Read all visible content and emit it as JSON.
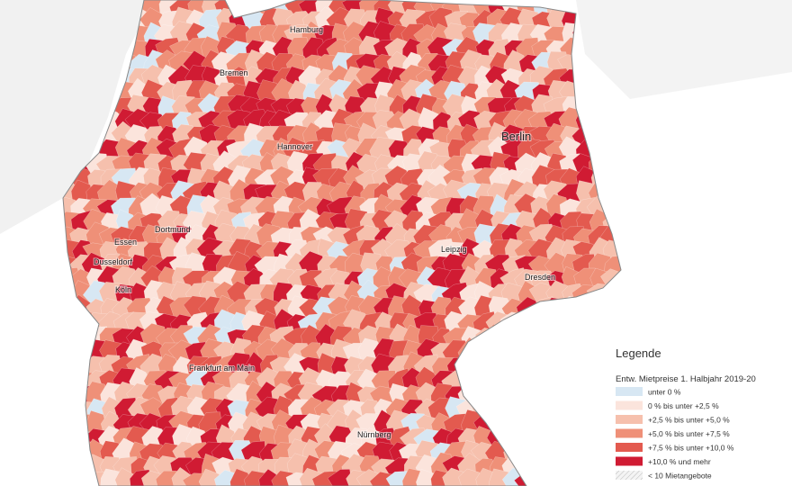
{
  "map": {
    "cities": [
      {
        "label": "Hamburg"
      },
      {
        "label": "Bremen"
      },
      {
        "label": "Hannover"
      },
      {
        "label": "Berlin"
      },
      {
        "label": "Dortmund"
      },
      {
        "label": "Essen"
      },
      {
        "label": "Dusseldorf"
      },
      {
        "label": "Köln"
      },
      {
        "label": "Leipzig"
      },
      {
        "label": "Dresden"
      },
      {
        "label": "Frankfurt am Main"
      },
      {
        "label": "Nürnberg"
      }
    ]
  },
  "legend": {
    "title": "Legende",
    "subtitle": "Entw. Mietpreise 1. Halbjahr 2019-20",
    "items": [
      {
        "label": "unter 0 %",
        "color": "#d7e7f3"
      },
      {
        "label": "0 % bis unter +2,5 %",
        "color": "#fbe4dc"
      },
      {
        "label": "+2,5 % bis unter +5,0 %",
        "color": "#f6c0ad"
      },
      {
        "label": "+5,0 % bis unter +7,5 %",
        "color": "#ef9078"
      },
      {
        "label": "+7,5 % bis unter +10,0 %",
        "color": "#e35a4f"
      },
      {
        "label": "+10,0 % und mehr",
        "color": "#d01b33"
      },
      {
        "label": "< 10 Mietangebote",
        "color": "#ececec"
      }
    ]
  }
}
